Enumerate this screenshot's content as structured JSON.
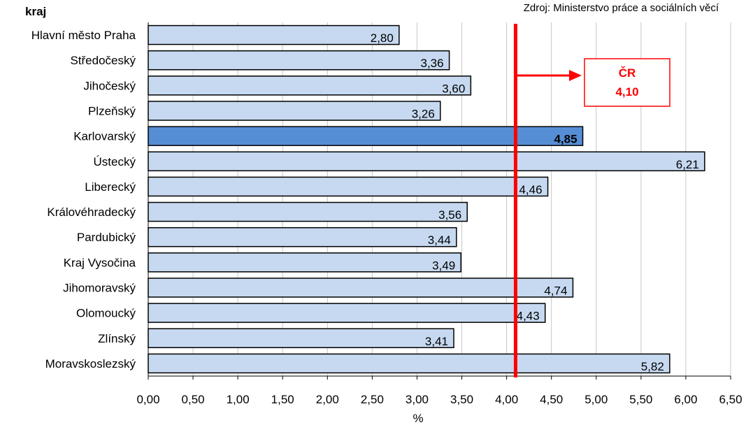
{
  "source": "Zdroj: Ministerstvo práce a sociálních věcí",
  "reference": {
    "label": "ČR",
    "value_text": "4,10",
    "value": 4.1,
    "color": "#ff0000"
  },
  "colors": {
    "bar": "#c6d9f0",
    "bar_highlight": "#558ed5",
    "bar_border": "#000000",
    "grid": "#c8c8c8"
  },
  "chart_data": {
    "type": "bar",
    "orientation": "horizontal",
    "ylabel": "kraj",
    "xlabel": "%",
    "xlim": [
      0,
      6.5
    ],
    "grid": true,
    "highlight": "Karlovarský",
    "categories": [
      "Hlavní město Praha",
      "Středočeský",
      "Jihočeský",
      "Plzeňský",
      "Karlovarský",
      "Ústecký",
      "Liberecký",
      "Královéhradecký",
      "Pardubický",
      "Kraj Vysočina",
      "Jihomoravský",
      "Olomoucký",
      "Zlínský",
      "Moravskoslezský"
    ],
    "values": [
      2.8,
      3.36,
      3.6,
      3.26,
      4.85,
      6.21,
      4.46,
      3.56,
      3.44,
      3.49,
      4.74,
      4.43,
      3.41,
      5.82
    ],
    "value_labels": [
      "2,80",
      "3,36",
      "3,60",
      "3,26",
      "4,85",
      "6,21",
      "4,46",
      "3,56",
      "3,44",
      "3,49",
      "4,74",
      "4,43",
      "3,41",
      "5,82"
    ],
    "ticks": [
      "0,00",
      "0,50",
      "1,00",
      "1,50",
      "2,00",
      "2,50",
      "3,00",
      "3,50",
      "4,00",
      "4,50",
      "5,00",
      "5,50",
      "6,00",
      "6,50"
    ]
  }
}
